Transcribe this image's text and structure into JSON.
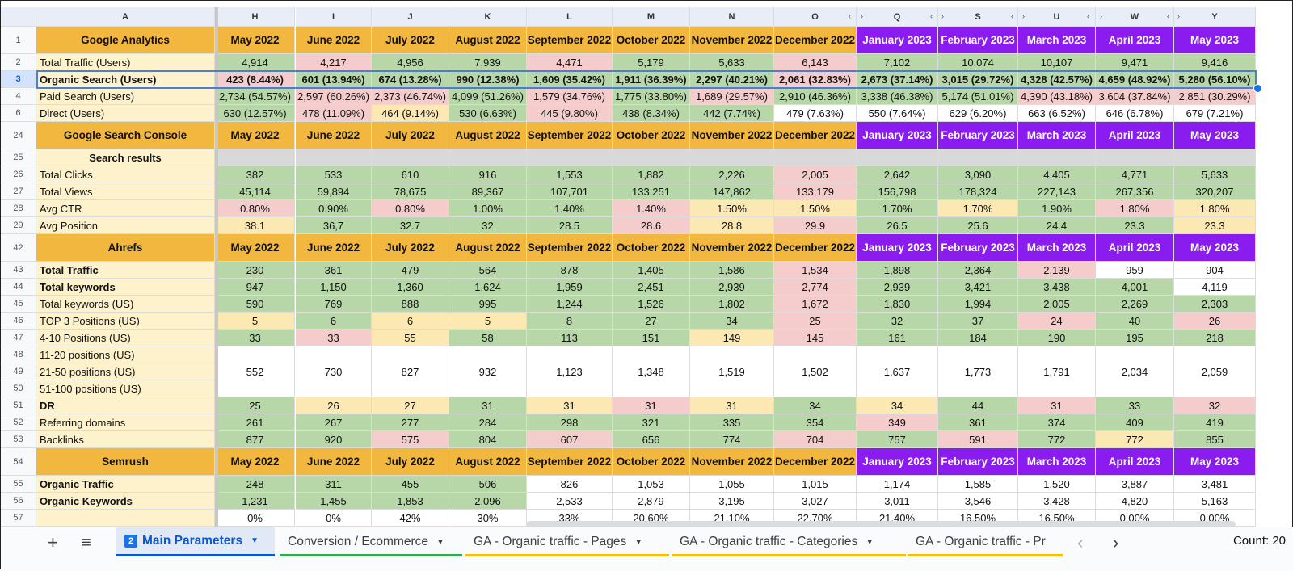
{
  "col_headers": [
    "A",
    "H",
    "I",
    "J",
    "K",
    "L",
    "M",
    "N",
    "O",
    "Q",
    "S",
    "U",
    "W",
    "Y"
  ],
  "rows": [
    {
      "num": "1",
      "type": "hdr",
      "cells": [
        "Google Analytics",
        "May 2022",
        "June 2022",
        "July 2022",
        "August 2022",
        "September 2022",
        "October 2022",
        "November 2022",
        "December 2022",
        "January 2023",
        "February 2023",
        "March 2023",
        "April 2023",
        "May 2023"
      ]
    },
    {
      "num": "2",
      "cells": [
        "Total Traffic (Users)",
        "4,914",
        "4,217",
        "4,956",
        "7,939",
        "4,471",
        "5,179",
        "5,633",
        "6,143",
        "7,102",
        "10,074",
        "10,107",
        "9,471",
        "9,416"
      ],
      "colors": [
        "g",
        "r",
        "g",
        "g",
        "r",
        "g",
        "g",
        "r",
        "g",
        "g",
        "g",
        "g",
        "g"
      ]
    },
    {
      "num": "3",
      "bold": true,
      "selected": true,
      "cells": [
        "Organic Search (Users)",
        "423 (8.44%)",
        "601 (13.94%)",
        "674 (13.28%)",
        "990 (12.38%)",
        "1,609 (35.42%)",
        "1,911 (36.39%)",
        "2,297 (40.21%)",
        "2,061 (32.83%)",
        "2,673 (37.14%)",
        "3,015 (29.72%)",
        "4,328 (42.57%)",
        "4,659 (48.92%)",
        "5,280 (56.10%)"
      ],
      "colors": [
        "r",
        "g",
        "g",
        "g",
        "g",
        "g",
        "g",
        "r",
        "g",
        "g",
        "g",
        "g",
        "g"
      ]
    },
    {
      "num": "4",
      "cells": [
        "Paid Search (Users)",
        "2,734 (54.57%)",
        "2,597 (60.26%)",
        "2,373 (46.74%)",
        "4,099 (51.26%)",
        "1,579 (34.76%)",
        "1,775 (33.80%)",
        "1,689 (29.57%)",
        "2,910 (46.36%)",
        "3,338 (46.38%)",
        "5,174 (51.01%)",
        "4,390 (43.18%)",
        "3,604 (37.84%)",
        "2,851 (30.29%)"
      ],
      "colors": [
        "g",
        "r",
        "r",
        "g",
        "r",
        "g",
        "r",
        "g",
        "g",
        "g",
        "r",
        "r",
        "r"
      ]
    },
    {
      "num": "6",
      "cells": [
        "Direct (Users)",
        "630 (12.57%)",
        "478 (11.09%)",
        "464 (9.14%)",
        "530 (6.63%)",
        "445 (9.80%)",
        "438 (8.34%)",
        "442 (7.74%)",
        "479 (7.63%)",
        "550 (7.64%)",
        "629 (6.20%)",
        "663 (6.52%)",
        "646 (6.78%)",
        "679 (7.21%)"
      ],
      "colors": [
        "g",
        "r",
        "y",
        "g",
        "r",
        "g",
        "g",
        "w",
        "w",
        "w",
        "w",
        "w",
        "w"
      ]
    },
    {
      "num": "24",
      "type": "hdr",
      "cells": [
        "Google Search Console",
        "May 2022",
        "June 2022",
        "July 2022",
        "August 2022",
        "September 2022",
        "October 2022",
        "November 2022",
        "December 2022",
        "January 2023",
        "February 2023",
        "March 2023",
        "April 2023",
        "May 2023"
      ]
    },
    {
      "num": "25",
      "type": "sub",
      "cells": [
        "Search results",
        "",
        "",
        "",
        "",
        "",
        "",
        "",
        "",
        "",
        "",
        "",
        "",
        ""
      ]
    },
    {
      "num": "26",
      "cells": [
        "Total Clicks",
        "382",
        "533",
        "610",
        "916",
        "1,553",
        "1,882",
        "2,226",
        "2,005",
        "2,642",
        "3,090",
        "4,405",
        "4,771",
        "5,633"
      ],
      "colors": [
        "g",
        "g",
        "g",
        "g",
        "g",
        "g",
        "g",
        "r",
        "g",
        "g",
        "g",
        "g",
        "g"
      ]
    },
    {
      "num": "27",
      "cells": [
        "Total Views",
        "45,114",
        "59,894",
        "78,675",
        "89,367",
        "107,701",
        "133,251",
        "147,862",
        "133,179",
        "156,798",
        "178,324",
        "227,143",
        "267,356",
        "320,207"
      ],
      "colors": [
        "g",
        "g",
        "g",
        "g",
        "g",
        "g",
        "g",
        "r",
        "g",
        "g",
        "g",
        "g",
        "g"
      ]
    },
    {
      "num": "28",
      "cells": [
        "Avg CTR",
        "0.80%",
        "0.90%",
        "0.80%",
        "1.00%",
        "1.40%",
        "1.40%",
        "1.50%",
        "1.50%",
        "1.70%",
        "1.70%",
        "1.90%",
        "1.80%",
        "1.80%"
      ],
      "colors": [
        "r",
        "g",
        "r",
        "g",
        "g",
        "r",
        "y",
        "y",
        "g",
        "y",
        "g",
        "r",
        "y"
      ]
    },
    {
      "num": "29",
      "cells": [
        "Avg Position",
        "38.1",
        "36,7",
        "32.7",
        "32",
        "28.5",
        "28.6",
        "28.8",
        "29.9",
        "26.5",
        "25.6",
        "24.4",
        "23.3",
        "23.3"
      ],
      "colors": [
        "y",
        "g",
        "g",
        "g",
        "g",
        "r",
        "y",
        "r",
        "g",
        "g",
        "g",
        "g",
        "y"
      ]
    },
    {
      "num": "42",
      "type": "hdr",
      "cells": [
        "Ahrefs",
        "May 2022",
        "June 2022",
        "July 2022",
        "August 2022",
        "September 2022",
        "October 2022",
        "November 2022",
        "December 2022",
        "January 2023",
        "February 2023",
        "March 2023",
        "April 2023",
        "May 2023"
      ]
    },
    {
      "num": "43",
      "labelBold": true,
      "cells": [
        "Total Traffic",
        "230",
        "361",
        "479",
        "564",
        "878",
        "1,405",
        "1,586",
        "1,534",
        "1,898",
        "2,364",
        "2,139",
        "959",
        "904"
      ],
      "colors": [
        "g",
        "g",
        "g",
        "g",
        "g",
        "g",
        "g",
        "r",
        "g",
        "g",
        "r",
        "w",
        "w"
      ]
    },
    {
      "num": "44",
      "labelBold": true,
      "cells": [
        "Total keywords",
        "947",
        "1,150",
        "1,360",
        "1,624",
        "1,959",
        "2,451",
        "2,939",
        "2,774",
        "2,939",
        "3,421",
        "3,438",
        "4,001",
        "4,119"
      ],
      "colors": [
        "g",
        "g",
        "g",
        "g",
        "g",
        "g",
        "g",
        "r",
        "g",
        "g",
        "g",
        "g",
        "w"
      ]
    },
    {
      "num": "45",
      "cells": [
        "Total keywords (US)",
        "590",
        "769",
        "888",
        "995",
        "1,244",
        "1,526",
        "1,802",
        "1,672",
        "1,830",
        "1,994",
        "2,005",
        "2,269",
        "2,303"
      ],
      "colors": [
        "g",
        "g",
        "g",
        "g",
        "g",
        "g",
        "g",
        "r",
        "g",
        "g",
        "g",
        "g",
        "g"
      ]
    },
    {
      "num": "46",
      "cells": [
        "TOP 3 Positions (US)",
        "5",
        "6",
        "6",
        "5",
        "8",
        "27",
        "34",
        "25",
        "32",
        "37",
        "24",
        "40",
        "26"
      ],
      "colors": [
        "y",
        "g",
        "y",
        "y",
        "g",
        "g",
        "g",
        "r",
        "g",
        "g",
        "r",
        "g",
        "r"
      ]
    },
    {
      "num": "47",
      "cells": [
        "4-10 Positions (US)",
        "33",
        "33",
        "55",
        "58",
        "113",
        "151",
        "149",
        "145",
        "161",
        "184",
        "190",
        "195",
        "218"
      ],
      "colors": [
        "g",
        "r",
        "y",
        "g",
        "g",
        "g",
        "y",
        "r",
        "g",
        "g",
        "g",
        "g",
        "g"
      ]
    },
    {
      "num": "48",
      "merged": "start",
      "cells": [
        "11-20 positions (US)"
      ]
    },
    {
      "num": "49",
      "merged": "mid",
      "cells": [
        "21-50 positions (US)",
        "552",
        "730",
        "827",
        "932",
        "1,123",
        "1,348",
        "1,519",
        "1,502",
        "1,637",
        "1,773",
        "1,791",
        "2,034",
        "2,059"
      ]
    },
    {
      "num": "50",
      "merged": "end",
      "cells": [
        "51-100 positions (US)"
      ]
    },
    {
      "num": "51",
      "labelBold": true,
      "cells": [
        "DR",
        "25",
        "26",
        "27",
        "31",
        "31",
        "31",
        "31",
        "34",
        "34",
        "44",
        "31",
        "33",
        "32"
      ],
      "colors": [
        "g",
        "y",
        "y",
        "g",
        "y",
        "r",
        "y",
        "g",
        "y",
        "g",
        "r",
        "g",
        "r"
      ]
    },
    {
      "num": "52",
      "cells": [
        "Referring domains",
        "261",
        "267",
        "277",
        "284",
        "298",
        "321",
        "335",
        "354",
        "349",
        "361",
        "374",
        "409",
        "419"
      ],
      "colors": [
        "g",
        "g",
        "g",
        "g",
        "g",
        "g",
        "g",
        "g",
        "r",
        "g",
        "g",
        "g",
        "g"
      ]
    },
    {
      "num": "53",
      "cells": [
        "Backlinks",
        "877",
        "920",
        "575",
        "804",
        "607",
        "656",
        "774",
        "704",
        "757",
        "591",
        "772",
        "772",
        "855"
      ],
      "colors": [
        "g",
        "g",
        "r",
        "g",
        "r",
        "g",
        "g",
        "r",
        "g",
        "r",
        "g",
        "y",
        "g"
      ]
    },
    {
      "num": "54",
      "type": "hdr",
      "cells": [
        "Semrush",
        "May 2022",
        "June 2022",
        "July 2022",
        "August 2022",
        "September 2022",
        "October 2022",
        "November 2022",
        "December 2022",
        "January 2023",
        "February 2023",
        "March 2023",
        "April 2023",
        "May 2023"
      ]
    },
    {
      "num": "55",
      "labelBold": true,
      "cells": [
        "Organic Traffic",
        "248",
        "311",
        "455",
        "506",
        "826",
        "1,053",
        "1,055",
        "1,015",
        "1,174",
        "1,585",
        "1,520",
        "3,887",
        "3,481"
      ],
      "colors": [
        "g",
        "g",
        "g",
        "g",
        "w",
        "w",
        "w",
        "w",
        "w",
        "w",
        "w",
        "w",
        "w"
      ]
    },
    {
      "num": "56",
      "labelBold": true,
      "cells": [
        "Organic Keywords",
        "1,231",
        "1,455",
        "1,853",
        "2,096",
        "2,533",
        "2,879",
        "3,195",
        "3,027",
        "3,011",
        "3,546",
        "3,428",
        "4,820",
        "5,163"
      ],
      "colors": [
        "g",
        "g",
        "g",
        "g",
        "w",
        "w",
        "w",
        "w",
        "w",
        "w",
        "w",
        "w",
        "w"
      ]
    },
    {
      "num": "57",
      "cells": [
        "",
        "0%",
        "0%",
        "42%",
        "30%",
        "33%",
        "20.60%",
        "21.10%",
        "22.70%",
        "21.40%",
        "16.50%",
        "16.50%",
        "0.00%",
        "0.00%"
      ],
      "colors": [
        "w",
        "w",
        "w",
        "w",
        "w",
        "w",
        "w",
        "w",
        "w",
        "w",
        "w",
        "w",
        "w"
      ]
    }
  ],
  "colors": {
    "g": "#b7d7a8",
    "r": "#f4cccc",
    "y": "#fce8b2",
    "w": "#ffffff",
    "orange": "#f1b73e",
    "purple": "#8a1cf0",
    "label_bg": "#fef2cc",
    "sub_bg": "#d9d9d9"
  },
  "tabs": {
    "add_icon": "+",
    "menu_icon": "≡",
    "items": [
      {
        "label": "Main Parameters",
        "num": "2",
        "active": true
      },
      {
        "label": "Conversion / Ecommerce",
        "underline": "#34a853"
      },
      {
        "label": "GA - Organic traffic - Pages",
        "underline": "#fbbc04"
      },
      {
        "label": "GA - Organic traffic - Categories",
        "underline": "#fbbc04"
      },
      {
        "label": "GA - Organic traffic - Pr",
        "underline": "#fbbc04"
      }
    ],
    "prev_icon": "‹",
    "next_icon": "›",
    "count": "Count: 20"
  }
}
